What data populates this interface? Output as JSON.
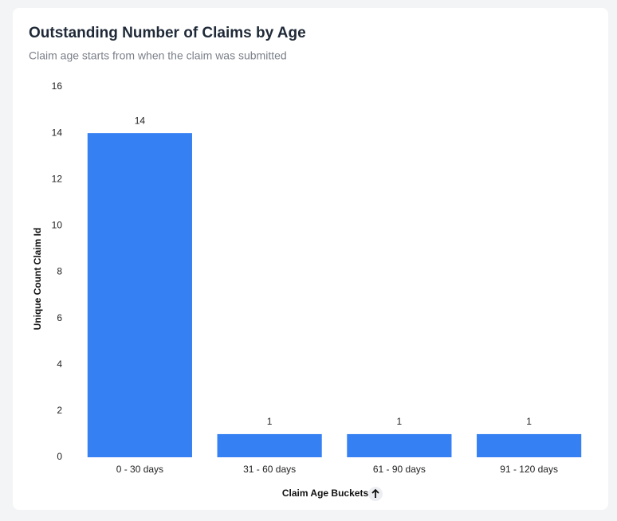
{
  "chart_data": {
    "type": "bar",
    "title": "Outstanding Number of Claims by Age",
    "subtitle": "Claim age starts from when the claim was submitted",
    "x_label": "Claim Age Buckets",
    "y_label": "Unique Count Claim Id",
    "categories": [
      "0 - 30 days",
      "31 - 60 days",
      "61 - 90 days",
      "91 - 120 days"
    ],
    "values": [
      14,
      1,
      1,
      1
    ],
    "color": "#3580f3",
    "ylim": [
      0,
      16
    ],
    "yticks": [
      0,
      2,
      4,
      6,
      8,
      10,
      12,
      14,
      16
    ],
    "grid": false
  }
}
